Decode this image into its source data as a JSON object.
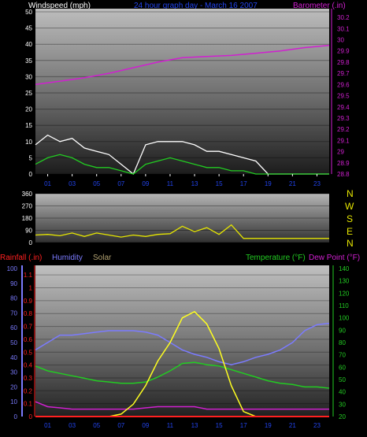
{
  "header": {
    "windspeed_label": "Windspeed (mph)",
    "title": "24 hour graph day - March 16 2007",
    "barometer_label": "Barometer (.in)"
  },
  "colors": {
    "barometer": "#d020d0",
    "wind": "#ffffff",
    "gust": "#22cc22",
    "direction": "#e6e600",
    "rainfall": "#ff2020",
    "humidity": "#7b7bff",
    "solar": "#b0a070",
    "temperature": "#22cc22",
    "dewpoint": "#d020d0",
    "solarline": "#ffff20",
    "tick": "#ffffff"
  },
  "compass": [
    "N",
    "W",
    "S",
    "E",
    "N"
  ],
  "bottom_header": {
    "rainfall_label": "Rainfall (.in)",
    "humidity_label": "Humidity",
    "solar_label": "Solar",
    "temperature_label": "Temperature (°F)",
    "dewpoint_label": "Dew Point (°F)"
  },
  "chart_data": [
    {
      "type": "line",
      "panel": "wind_barometer",
      "x_ticks": [
        "01",
        "03",
        "05",
        "07",
        "09",
        "11",
        "13",
        "15",
        "17",
        "19",
        "21",
        "23"
      ],
      "y_left": {
        "label": "Windspeed (mph)",
        "ticks": [
          0,
          5,
          10,
          15,
          20,
          25,
          30,
          35,
          40,
          45,
          50
        ],
        "ylim": [
          0,
          50
        ]
      },
      "y_right": {
        "label": "Barometer (.in)",
        "ticks": [
          "28.8",
          "28.9",
          "29",
          "29.1",
          "29.2",
          "29.3",
          "29.4",
          "29.5",
          "29.6",
          "29.7",
          "29.8",
          "29.9",
          "30",
          "30.1",
          "30.2"
        ],
        "ylim": [
          28.8,
          30.25
        ]
      },
      "series": [
        {
          "name": "Barometer",
          "axis": "right",
          "x": [
            0,
            2,
            4,
            6,
            8,
            10,
            12,
            14,
            16,
            18,
            20,
            22,
            24
          ],
          "values": [
            29.6,
            29.63,
            29.66,
            29.7,
            29.75,
            29.8,
            29.84,
            29.85,
            29.86,
            29.88,
            29.9,
            29.93,
            29.95
          ]
        },
        {
          "name": "Wind",
          "axis": "left",
          "x": [
            0,
            1,
            2,
            3,
            4,
            5,
            6,
            7,
            8,
            9,
            10,
            11,
            12,
            13,
            14,
            15,
            16,
            17,
            18,
            19,
            20,
            21,
            22,
            23,
            24
          ],
          "values": [
            9,
            12,
            10,
            11,
            8,
            7,
            6,
            3,
            0,
            9,
            10,
            10,
            10,
            9,
            7,
            7,
            6,
            5,
            4,
            0,
            0,
            0,
            0,
            0,
            0
          ]
        },
        {
          "name": "Gust",
          "axis": "left",
          "x": [
            0,
            1,
            2,
            3,
            4,
            5,
            6,
            7,
            8,
            9,
            10,
            11,
            12,
            13,
            14,
            15,
            16,
            17,
            18,
            19,
            20,
            21,
            22,
            23,
            24
          ],
          "values": [
            3,
            5,
            6,
            5,
            3,
            2,
            2,
            1,
            0,
            3,
            4,
            5,
            4,
            3,
            2,
            2,
            1,
            1,
            0,
            0,
            0,
            0,
            0,
            0,
            0
          ]
        }
      ]
    },
    {
      "type": "line",
      "panel": "wind_direction",
      "y_left": {
        "ticks": [
          0,
          90,
          180,
          270,
          360
        ],
        "ylim": [
          0,
          360
        ]
      },
      "series": [
        {
          "name": "Direction",
          "x": [
            0,
            1,
            2,
            3,
            4,
            5,
            6,
            7,
            8,
            9,
            10,
            11,
            12,
            13,
            14,
            15,
            16,
            17,
            18,
            19,
            20,
            21,
            22,
            23,
            24
          ],
          "values": [
            55,
            60,
            50,
            70,
            45,
            70,
            55,
            40,
            55,
            45,
            60,
            65,
            120,
            80,
            110,
            60,
            130,
            30,
            30,
            30,
            30,
            30,
            30,
            30,
            30
          ]
        }
      ]
    },
    {
      "type": "line",
      "panel": "rain_humidity_solar_temp",
      "x_ticks": [
        "01",
        "03",
        "05",
        "07",
        "09",
        "11",
        "13",
        "15",
        "17",
        "19",
        "21",
        "23"
      ],
      "y_humidity": {
        "label": "Humidity",
        "ticks": [
          0,
          10,
          20,
          30,
          40,
          50,
          60,
          70,
          80,
          90,
          100
        ],
        "ylim": [
          0,
          100
        ]
      },
      "y_rain": {
        "label": "Rainfall (.in)",
        "ticks": [
          "0",
          "0.1",
          "0.2",
          "0.3",
          "0.4",
          "0.5",
          "0.6",
          "0.7",
          "0.8",
          "0.9",
          "1",
          "1.1"
        ],
        "ylim": [
          0,
          1.15
        ]
      },
      "y_temp": {
        "label": "Temperature (°F)",
        "ticks": [
          20,
          30,
          40,
          50,
          60,
          70,
          80,
          90,
          100,
          110,
          120,
          130,
          140
        ],
        "ylim": [
          20,
          140
        ]
      },
      "series": [
        {
          "name": "Humidity",
          "axis": "humidity",
          "x": [
            0,
            1,
            2,
            3,
            4,
            5,
            6,
            7,
            8,
            9,
            10,
            11,
            12,
            13,
            14,
            15,
            16,
            17,
            18,
            19,
            20,
            21,
            22,
            23,
            24
          ],
          "values": [
            45,
            50,
            55,
            55,
            56,
            57,
            58,
            58,
            58,
            57,
            55,
            50,
            45,
            42,
            40,
            37,
            35,
            37,
            40,
            42,
            45,
            50,
            58,
            62,
            63
          ]
        },
        {
          "name": "Temperature",
          "axis": "temp",
          "x": [
            0,
            1,
            2,
            3,
            4,
            5,
            6,
            7,
            8,
            9,
            10,
            11,
            12,
            13,
            14,
            15,
            16,
            17,
            18,
            19,
            20,
            21,
            22,
            23,
            24
          ],
          "values": [
            61,
            57,
            55,
            53,
            51,
            49,
            48,
            47,
            47,
            48,
            52,
            57,
            63,
            64,
            62,
            61,
            58,
            55,
            52,
            49,
            47,
            46,
            44,
            44,
            43
          ]
        },
        {
          "name": "Dew Point",
          "axis": "temp",
          "x": [
            0,
            1,
            2,
            3,
            4,
            5,
            6,
            7,
            8,
            9,
            10,
            11,
            12,
            13,
            14,
            15,
            16,
            17,
            18,
            19,
            20,
            21,
            22,
            23,
            24
          ],
          "values": [
            32,
            28,
            27,
            26,
            26,
            26,
            26,
            26,
            26,
            27,
            28,
            28,
            28,
            28,
            26,
            26,
            26,
            26,
            26,
            26,
            26,
            26,
            26,
            26,
            26
          ]
        },
        {
          "name": "Solar",
          "axis": "temp",
          "x": [
            0,
            6,
            7,
            8,
            9,
            10,
            11,
            12,
            13,
            14,
            15,
            16,
            17,
            18,
            24
          ],
          "values": [
            20,
            20,
            22,
            30,
            45,
            65,
            80,
            100,
            105,
            95,
            75,
            45,
            24,
            20,
            20
          ]
        }
      ]
    }
  ]
}
